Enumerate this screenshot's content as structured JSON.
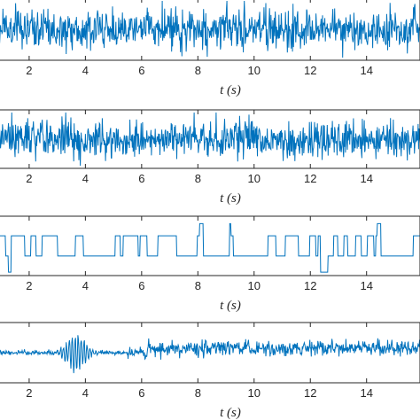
{
  "chart_data": [
    {
      "type": "line",
      "description_series": "white-noise-like random signal",
      "series": [
        {
          "values_note": "random dense oscillation",
          "amplitude": 0.9
        }
      ],
      "xlabel_var": "t",
      "xlabel_unit": "(s)",
      "x_ticks": [
        "2",
        "4",
        "6",
        "8",
        "10",
        "12",
        "14"
      ],
      "xlim": [
        0.9,
        15.9
      ],
      "grid": false,
      "color": "#0072BD"
    },
    {
      "type": "line",
      "series": [
        {
          "values_note": "random dense oscillation",
          "amplitude": 0.9
        }
      ],
      "xlabel_var": "t",
      "xlabel_unit": "(s)",
      "x_ticks": [
        "2",
        "4",
        "6",
        "8",
        "10",
        "12",
        "14"
      ],
      "xlim": [
        0.9,
        15.9
      ],
      "grid": false,
      "color": "#0072BD"
    },
    {
      "type": "line",
      "series": [
        {
          "values_note": "multi-level square-wave switching signal"
        }
      ],
      "xlabel_var": "t",
      "xlabel_unit": "(s)",
      "x_ticks": [
        "2",
        "4",
        "6",
        "8",
        "10",
        "12",
        "14"
      ],
      "xlim": [
        0.9,
        15.9
      ],
      "grid": false,
      "color": "#0072BD"
    },
    {
      "type": "line",
      "series": [
        {
          "values_note": "burst oscillation near t=3.7 s, small noise elsewhere"
        }
      ],
      "xlabel_var": "t",
      "xlabel_unit": "(s)",
      "x_ticks": [
        "2",
        "4",
        "6",
        "8",
        "10",
        "12",
        "14"
      ],
      "xlim": [
        0.9,
        15.9
      ],
      "grid": false,
      "color": "#0072BD"
    }
  ]
}
